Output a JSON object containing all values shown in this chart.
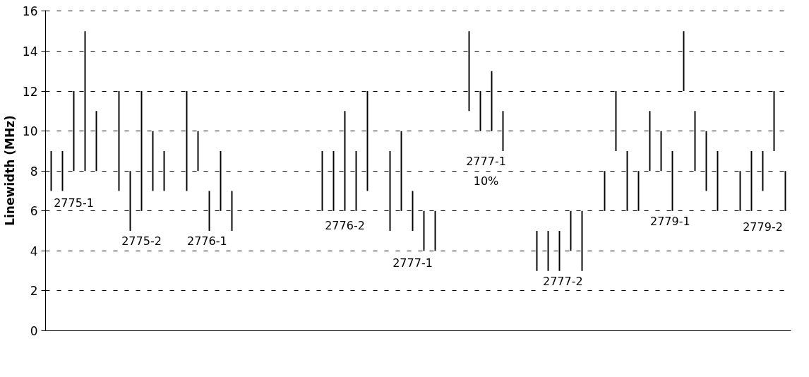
{
  "chart_data": {
    "type": "bar",
    "ylabel": "Linewidth (MHz)",
    "categories": [
      null,
      null,
      null,
      null,
      null,
      null,
      null,
      null,
      null,
      null,
      null,
      null,
      null,
      null,
      null,
      null,
      null,
      null,
      null,
      null,
      null,
      null,
      null,
      null,
      null,
      null,
      null,
      null,
      null,
      null,
      null,
      null,
      null,
      null,
      null,
      null,
      null,
      null,
      null,
      null,
      null,
      null,
      null,
      null,
      null,
      null,
      null,
      null,
      null,
      null,
      null,
      null,
      null,
      null,
      null,
      null,
      null,
      null,
      null,
      null,
      null,
      null,
      null,
      null,
      null,
      null
    ],
    "base": [
      7,
      7,
      8,
      8,
      8,
      null,
      7,
      5,
      6,
      7,
      7,
      null,
      7,
      8,
      5,
      6,
      5,
      null,
      null,
      null,
      null,
      null,
      null,
      null,
      6,
      6,
      6,
      6,
      7,
      null,
      5,
      6,
      5,
      4,
      4,
      null,
      null,
      11,
      10,
      10,
      9,
      null,
      null,
      3,
      3,
      3,
      4,
      3,
      null,
      6,
      9,
      6,
      6,
      8,
      8,
      6,
      12,
      8,
      7,
      6,
      null,
      6,
      6,
      7,
      9,
      6
    ],
    "values": [
      2,
      2,
      4,
      7,
      3,
      null,
      5,
      3,
      6,
      3,
      2,
      null,
      5,
      2,
      2,
      3,
      2,
      null,
      null,
      null,
      null,
      null,
      null,
      null,
      3,
      3,
      5,
      3,
      5,
      null,
      4,
      4,
      2,
      2,
      2,
      null,
      null,
      4,
      2,
      3,
      2,
      null,
      null,
      2,
      2,
      2,
      2,
      3,
      null,
      2,
      3,
      3,
      2,
      3,
      2,
      3,
      3,
      3,
      3,
      3,
      null,
      2,
      3,
      2,
      3,
      2
    ],
    "color": "#000000",
    "ylim": [
      0,
      16
    ],
    "yticks": [
      0,
      2,
      4,
      6,
      8,
      10,
      12,
      14,
      16
    ],
    "grid": "y",
    "line_style": "dashed",
    "annotations": [
      "2775-1",
      "2775-2",
      "2776-1",
      "2776-2",
      "2777-1",
      "2777-1",
      "10%",
      "2777-2",
      "2779-1",
      "2779-2"
    ]
  }
}
